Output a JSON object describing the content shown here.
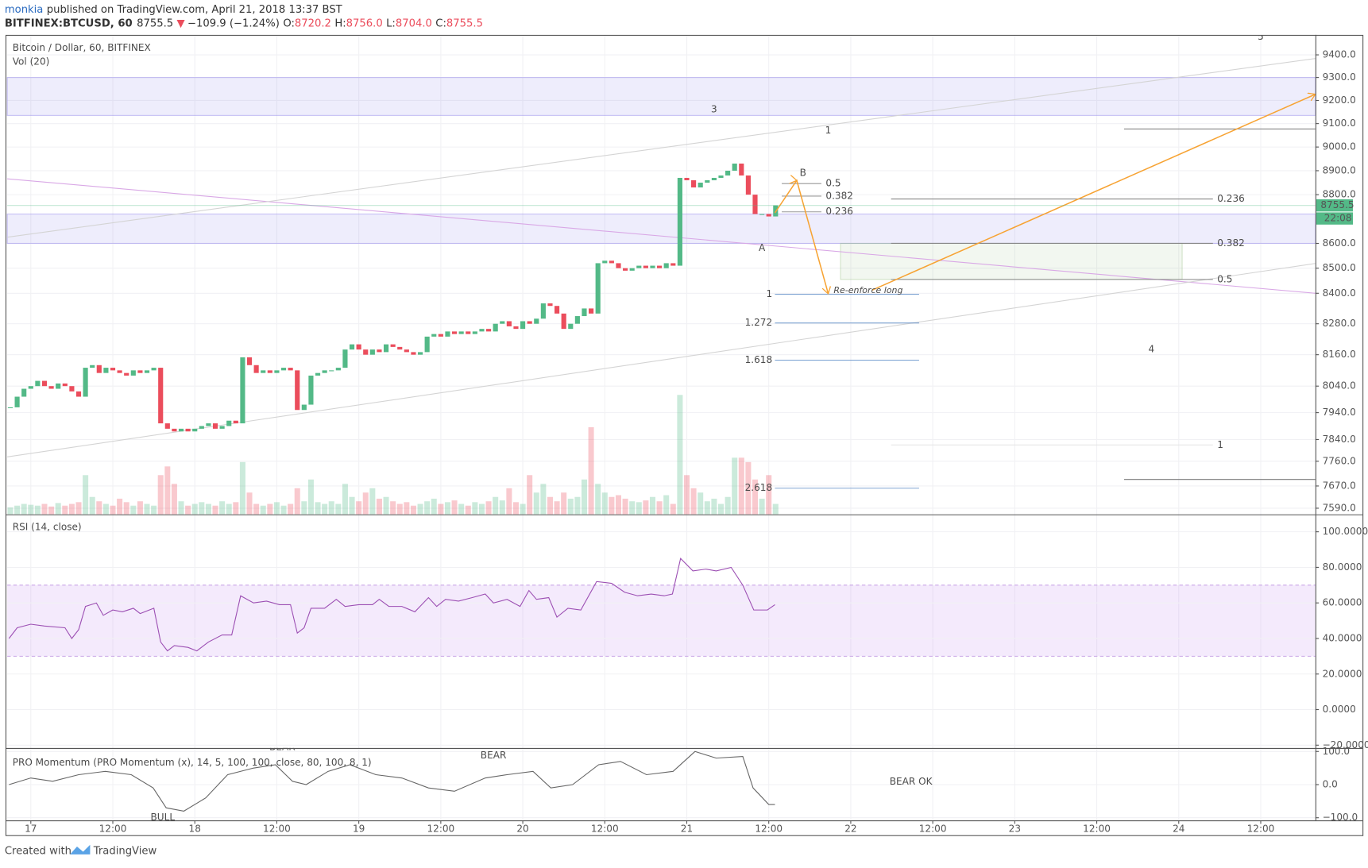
{
  "header": {
    "user": "monkia",
    "published": "published on TradingView.com, April 21, 2018 13:37 BST",
    "symbol": "BITFINEX:BTCUSD, 60",
    "change_icon": "▼",
    "change": "−109.9 (−1.24%)",
    "open_label": "O:",
    "open": "8720.2",
    "high_label": "H:",
    "high": "8756.0",
    "low_label": "L:",
    "low": "8704.0",
    "close_label": "C:"
  },
  "footer": {
    "created": "Created with",
    "brand": "TradingView"
  },
  "chart_data": [
    {
      "type": "candlestick",
      "title": "Bitcoin / Dollar, 60, BITFINEX",
      "volume_title": "Vol (20)",
      "countdown": "22:08",
      "up_color": "#53b987",
      "down_color": "#eb4d5c",
      "log": true,
      "grid": true,
      "xlim": [
        -3.45,
        188
      ],
      "xticks": [
        {
          "value": 0,
          "label": "17"
        },
        {
          "value": 12,
          "label": "12:00"
        },
        {
          "value": 24,
          "label": "18"
        },
        {
          "value": 36,
          "label": "12:00"
        },
        {
          "value": 48,
          "label": "19"
        },
        {
          "value": 60,
          "label": "12:00"
        },
        {
          "value": 72,
          "label": "20"
        },
        {
          "value": 84,
          "label": "12:00"
        },
        {
          "value": 96,
          "label": "21"
        },
        {
          "value": 108,
          "label": "12:00"
        },
        {
          "value": 120,
          "label": "22"
        },
        {
          "value": 132,
          "label": "12:00"
        },
        {
          "value": 144,
          "label": "23"
        },
        {
          "value": 156,
          "label": "12:00"
        },
        {
          "value": 168,
          "label": "24"
        },
        {
          "value": 180,
          "label": "12:00"
        }
      ],
      "ylim": [
        7568,
        9489
      ],
      "yticks": [
        {
          "value": 9400,
          "label": "9400.0"
        },
        {
          "value": 9300,
          "label": "9300.0"
        },
        {
          "value": 9200,
          "label": "9200.0"
        },
        {
          "value": 9100,
          "label": "9100.0"
        },
        {
          "value": 9000,
          "label": "9000.0"
        },
        {
          "value": 8900,
          "label": "8900.0"
        },
        {
          "value": 8800,
          "label": "8800.0"
        },
        {
          "value": 8600,
          "label": "8600.0"
        },
        {
          "value": 8500,
          "label": "8500.0"
        },
        {
          "value": 8400,
          "label": "8400.0"
        },
        {
          "value": 8280,
          "label": "8280.0"
        },
        {
          "value": 8160,
          "label": "8160.0"
        },
        {
          "value": 8040,
          "label": "8040.0"
        },
        {
          "value": 7940,
          "label": "7940.0"
        },
        {
          "value": 7840,
          "label": "7840.0"
        },
        {
          "value": 7760,
          "label": "7760.0"
        },
        {
          "value": 7670,
          "label": "7670.0"
        },
        {
          "value": 7590,
          "label": "7590.0"
        }
      ],
      "x": [
        -3,
        -2,
        -1,
        0,
        1,
        2,
        3,
        4,
        5,
        6,
        7,
        8,
        9,
        10,
        11,
        12,
        13,
        14,
        15,
        16,
        17,
        18,
        19,
        20,
        21,
        22,
        23,
        24,
        25,
        26,
        27,
        28,
        29,
        30,
        31,
        32,
        33,
        34,
        35,
        36,
        37,
        38,
        39,
        40,
        41,
        42,
        43,
        44,
        45,
        46,
        47,
        48,
        49,
        50,
        51,
        52,
        53,
        54,
        55,
        56,
        57,
        58,
        59,
        60,
        61,
        62,
        63,
        64,
        65,
        66,
        67,
        68,
        69,
        70,
        71,
        72,
        73,
        74,
        75,
        76,
        77,
        78,
        79,
        80,
        81,
        82,
        83,
        84,
        85,
        86,
        87,
        88,
        89,
        90,
        91,
        92,
        93,
        94,
        95,
        96,
        97,
        98,
        99,
        100,
        101,
        102,
        103,
        104,
        105,
        106,
        107,
        108,
        109
      ],
      "closes": [
        7960,
        8000,
        8030,
        8040,
        8060,
        8040,
        8030,
        8050,
        8040,
        8020,
        8000,
        8110,
        8120,
        8090,
        8110,
        8100,
        8090,
        8080,
        8100,
        8090,
        8100,
        8110,
        7900,
        7880,
        7870,
        7880,
        7870,
        7880,
        7890,
        7900,
        7880,
        7890,
        7910,
        7900,
        8150,
        8120,
        8090,
        8100,
        8090,
        8100,
        8110,
        8100,
        7950,
        7970,
        8080,
        8090,
        8100,
        8100,
        8110,
        8180,
        8200,
        8180,
        8160,
        8180,
        8170,
        8200,
        8190,
        8180,
        8170,
        8160,
        8170,
        8230,
        8240,
        8230,
        8250,
        8240,
        8250,
        8240,
        8250,
        8260,
        8250,
        8280,
        8290,
        8270,
        8260,
        8290,
        8280,
        8300,
        8360,
        8350,
        8320,
        8260,
        8280,
        8310,
        8340,
        8320,
        8520,
        8530,
        8520,
        8500,
        8490,
        8500,
        8510,
        8500,
        8510,
        8500,
        8520,
        8510,
        8870,
        8860,
        8830,
        8850,
        8860,
        8870,
        8880,
        8900,
        8930,
        8880,
        8800,
        8720,
        8720,
        8710,
        8755.5
      ],
      "vol_ylim": [
        0,
        140
      ],
      "volume": [
        8,
        10,
        12,
        11,
        10,
        12,
        9,
        13,
        10,
        12,
        14,
        45,
        20,
        15,
        12,
        10,
        18,
        14,
        10,
        15,
        12,
        10,
        45,
        55,
        35,
        15,
        10,
        12,
        14,
        12,
        10,
        15,
        12,
        14,
        60,
        25,
        12,
        10,
        12,
        14,
        10,
        12,
        30,
        15,
        40,
        14,
        12,
        15,
        12,
        35,
        20,
        15,
        25,
        30,
        18,
        20,
        15,
        12,
        14,
        10,
        12,
        15,
        18,
        12,
        14,
        16,
        12,
        10,
        14,
        12,
        15,
        20,
        16,
        30,
        14,
        12,
        45,
        25,
        35,
        20,
        15,
        25,
        18,
        20,
        40,
        100,
        35,
        25,
        20,
        22,
        18,
        15,
        14,
        16,
        20,
        15,
        22,
        12,
        137,
        45,
        30,
        25,
        15,
        18,
        12,
        20,
        65,
        65,
        60,
        40,
        18,
        45,
        12
      ],
      "zones": [
        {
          "y": [
            9135,
            9300
          ],
          "color": "rgba(150,140,235,0.16)"
        },
        {
          "y": [
            8600,
            8720
          ],
          "color": "rgba(150,140,235,0.16)"
        }
      ],
      "boxes": [
        {
          "x": [
            118.5,
            168.5
          ],
          "y": [
            8455,
            8600
          ],
          "color": "rgba(150,190,130,0.12)"
        }
      ],
      "lines": [
        {
          "x": [
            -3.45,
            188
          ],
          "y": [
            8866,
            8400
          ],
          "color": "#d9a8e6"
        },
        {
          "x": [
            -3.45,
            188
          ],
          "y": [
            8625,
            9384
          ],
          "color": "#d4d4d4"
        },
        {
          "x": [
            -3.45,
            188
          ],
          "y": [
            7776,
            8519
          ],
          "color": "#d4d4d4"
        },
        {
          "x": [
            160,
            188
          ],
          "y": [
            9077,
            9077
          ],
          "color": "#777"
        },
        {
          "x": [
            160,
            188
          ],
          "y": [
            7694,
            7694
          ],
          "color": "#777"
        }
      ],
      "arrows": [
        {
          "x": [
            108.9,
            112.1,
            116.7
          ],
          "y": [
            8725,
            8859,
            8398
          ],
          "color": "#f7a333"
        },
        {
          "x": [
            123.1,
            188
          ],
          "y": [
            8412,
            9227
          ],
          "color": "#f7a333"
        }
      ],
      "levels": [
        {
          "label": "0.5",
          "x": [
            109.9,
            115.7
          ],
          "y": 8846,
          "color": "#999"
        },
        {
          "label": "0.382",
          "x": [
            109.9,
            115.7
          ],
          "y": 8794,
          "color": "#999"
        },
        {
          "label": "0.236",
          "x": [
            109.9,
            115.7
          ],
          "y": 8729,
          "color": "#999"
        },
        {
          "label": "0.236",
          "x": [
            125.9,
            173
          ],
          "y": 8782,
          "color": "#888"
        },
        {
          "label": "0.382",
          "x": [
            125.9,
            173
          ],
          "y": 8600,
          "color": "#888"
        },
        {
          "label": "0.5",
          "x": [
            125.9,
            173
          ],
          "y": 8455,
          "color": "#888"
        },
        {
          "label": "1",
          "x": [
            125.9,
            173
          ],
          "y": 7820,
          "color": "#e4e4e4"
        }
      ],
      "levels_before": [
        {
          "label": "1",
          "x": [
            108.9,
            130
          ],
          "y": 8396,
          "color": "#4a7fc1"
        },
        {
          "label": "1.272",
          "x": [
            108.9,
            130
          ],
          "y": 8283,
          "color": "#4a7fc1"
        },
        {
          "label": "1.618",
          "x": [
            108.9,
            130
          ],
          "y": 8139,
          "color": "#4a7fc1"
        },
        {
          "label": "2.618",
          "x": [
            108.9,
            130
          ],
          "y": 7662,
          "color": "#4a7fc1"
        }
      ],
      "annotations": [
        {
          "text": "3",
          "x": 100,
          "y": 9160
        },
        {
          "text": "A",
          "x": 107,
          "y": 8580
        },
        {
          "text": "B",
          "x": 113,
          "y": 8890
        },
        {
          "text": "4",
          "x": 164,
          "y": 8180
        },
        {
          "text": "5",
          "x": 180,
          "y": 9480
        },
        {
          "text": "1",
          "x": 116.7,
          "y": 9070
        },
        {
          "text": "Re-enforce long",
          "x": 117.5,
          "y": 8410
        }
      ]
    },
    {
      "type": "line",
      "title": "RSI (14, close)",
      "color": "#9c4fb3",
      "grid": true,
      "ylim": [
        -21.6,
        109.8
      ],
      "yticks": [
        {
          "value": 100,
          "label": "100.0000"
        },
        {
          "value": 80,
          "label": "80.0000"
        },
        {
          "value": 60,
          "label": "60.0000"
        },
        {
          "value": 40,
          "label": "40.0000"
        },
        {
          "value": 20,
          "label": "20.0000"
        },
        {
          "value": 0,
          "label": "0.0000"
        },
        {
          "value": -20,
          "label": "−20.0000"
        }
      ],
      "band": {
        "y": [
          30,
          70
        ],
        "color": "rgba(200,150,240,0.2)"
      },
      "x": [
        -3.2,
        -2,
        0,
        2,
        5,
        6,
        7,
        8,
        9.6,
        10.6,
        12,
        13.4,
        15,
        16,
        18,
        19,
        20,
        21,
        23,
        24.3,
        26,
        28,
        29.4,
        30.7,
        32.6,
        34.5,
        36.4,
        38,
        39,
        40,
        41,
        43,
        44.7,
        46,
        48,
        50,
        51,
        52.4,
        54.3,
        56.2,
        58.2,
        59.4,
        60.7,
        62.6,
        64.6,
        66.5,
        67.7,
        69.7,
        71.6,
        72.9,
        74,
        75.8,
        77,
        78.6,
        80.5,
        82.8,
        85,
        86.9,
        88.8,
        90.8,
        92.7,
        93.9,
        95.1,
        96.9,
        98.8,
        100.3,
        102.5,
        104.2,
        105.8,
        107.8,
        108.9
      ],
      "values": [
        40,
        46,
        48,
        47,
        46,
        40,
        45,
        58,
        60,
        53,
        56,
        55,
        57,
        54,
        57,
        38,
        33,
        36,
        35,
        33,
        38,
        42,
        42,
        64,
        60,
        61,
        59,
        59,
        43,
        46,
        57,
        57,
        62,
        58,
        59,
        59,
        62,
        58,
        58,
        55,
        63,
        58,
        62,
        61,
        63,
        65,
        60,
        62,
        58,
        67,
        62,
        63,
        52,
        57,
        56,
        72,
        71,
        66,
        64,
        65,
        64,
        65,
        85,
        78,
        79,
        78,
        80,
        70,
        56,
        56,
        59
      ]
    },
    {
      "type": "line",
      "title": "PRO Momentum (PRO Momentum (x), 14, 5, 100, 100, close, 80, 100, 8, 1)",
      "color": "#666",
      "grid": true,
      "ylim": [
        -107.9,
        110.5
      ],
      "yticks": [
        {
          "value": 100,
          "label": "100.0"
        },
        {
          "value": 0,
          "label": "0.0"
        },
        {
          "value": -100,
          "label": "−100.0"
        }
      ],
      "x": [
        -3.2,
        0,
        3.2,
        7,
        10.9,
        14.7,
        17.9,
        19.8,
        22.4,
        25.6,
        28.8,
        32.6,
        35.8,
        38.3,
        40.3,
        43.5,
        46.7,
        50.5,
        54.3,
        58.2,
        62,
        66.5,
        69.7,
        73.5,
        76.1,
        79.3,
        83.1,
        86.3,
        90.1,
        94,
        97.2,
        100.3,
        104.2,
        105.7,
        108,
        108.9
      ],
      "values": [
        0,
        20,
        10,
        30,
        40,
        30,
        -10,
        -70,
        -80,
        -40,
        30,
        50,
        60,
        10,
        0,
        40,
        60,
        30,
        20,
        -10,
        -20,
        20,
        30,
        40,
        -10,
        0,
        60,
        70,
        30,
        40,
        100,
        80,
        85,
        -10,
        -60,
        -60
      ],
      "annotations": [
        {
          "text": "BEAR",
          "x": 36.8,
          "y": 113,
          "color": "#f08a8a"
        },
        {
          "text": "BEAR",
          "x": 67.7,
          "y": 87,
          "color": "#f08a8a"
        },
        {
          "text": "BULL",
          "x": 19.3,
          "y": -100,
          "color": "#8ab4f0"
        },
        {
          "text": "BEAR OK",
          "x": 128.8,
          "y": 8,
          "color": "#f08a8a"
        }
      ]
    }
  ]
}
